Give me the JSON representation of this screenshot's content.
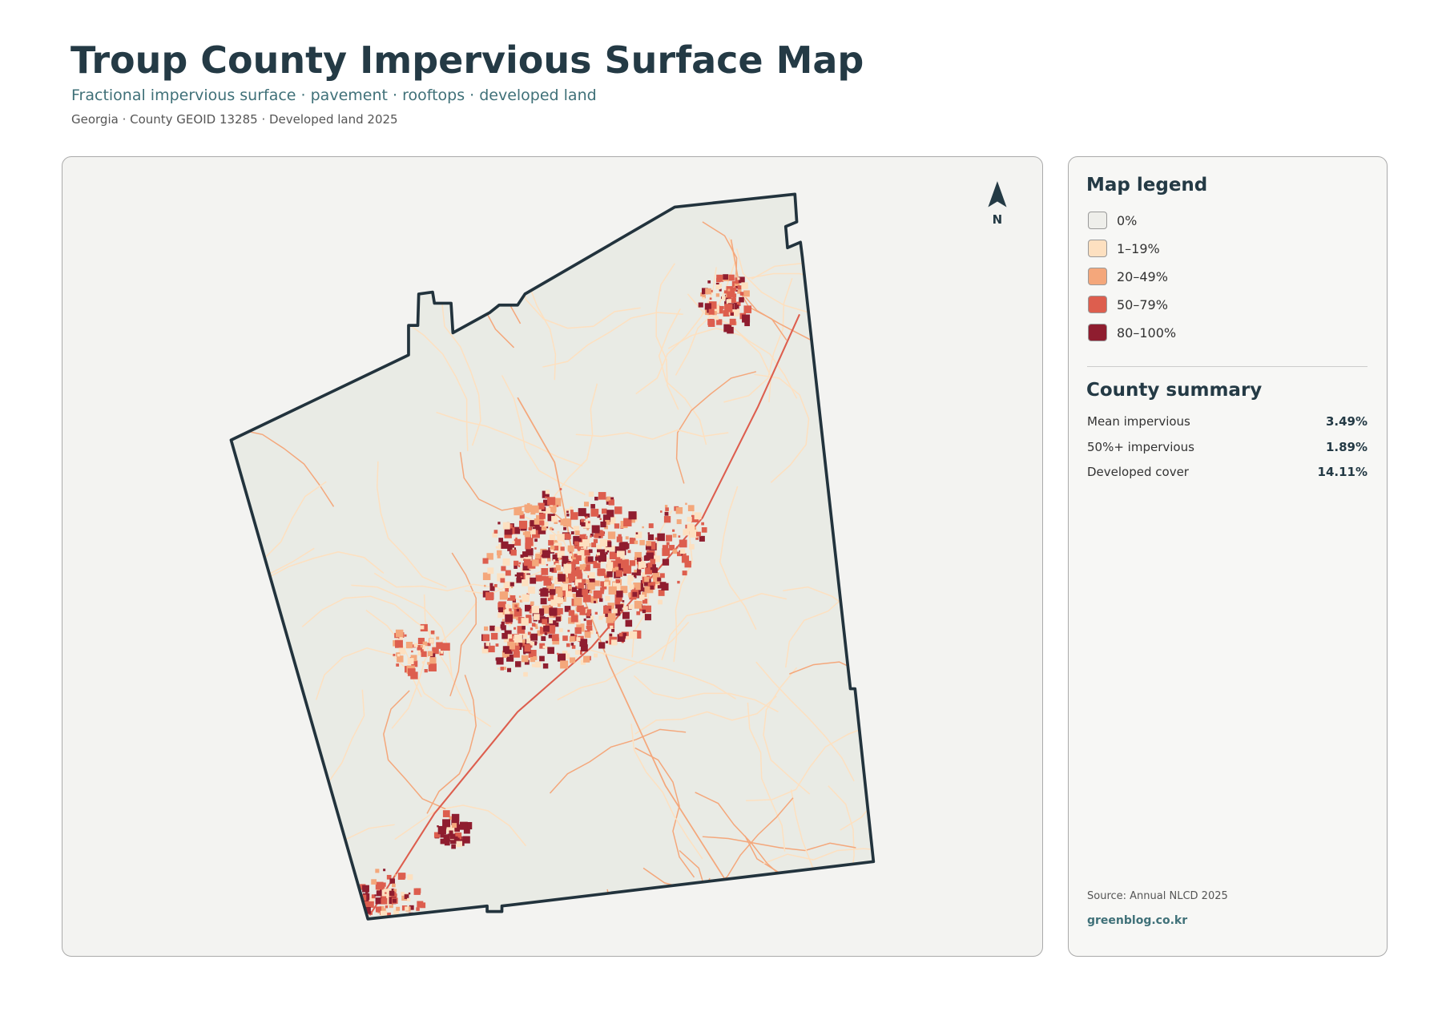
{
  "header": {
    "title": "Troup County Impervious Surface Map",
    "subtitle": "Fractional impervious surface · pavement · rooftops · developed land",
    "meta": "Georgia · County GEOID 13285 · Developed land 2025"
  },
  "map": {
    "north": "N"
  },
  "legend": {
    "title": "Map legend",
    "items": [
      {
        "label": "0%",
        "color": "#eeeeea"
      },
      {
        "label": "1–19%",
        "color": "#fde0c0"
      },
      {
        "label": "20–49%",
        "color": "#f4a77b"
      },
      {
        "label": "50–79%",
        "color": "#dd5e4e"
      },
      {
        "label": "80–100%",
        "color": "#8f1d2f"
      }
    ]
  },
  "summary": {
    "title": "County summary",
    "rows": [
      {
        "label": "Mean impervious",
        "value": "3.49%"
      },
      {
        "label": "50%+ impervious",
        "value": "1.89%"
      },
      {
        "label": "Developed cover",
        "value": "14.11%"
      }
    ]
  },
  "footer": {
    "source": "Source: Annual NLCD 2025",
    "site": "greenblog.co.kr"
  }
}
